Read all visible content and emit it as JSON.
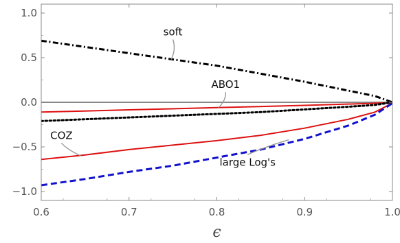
{
  "chart_data": {
    "type": "line",
    "title": "",
    "xlabel": "ϵ",
    "ylabel": "",
    "xlim": [
      0.6,
      1.0
    ],
    "ylim": [
      -1.1,
      1.1
    ],
    "grid": false,
    "xticks": [
      0.6,
      0.7,
      0.8,
      0.9,
      1.0
    ],
    "xtick_labels": [
      "0.6",
      "0.7",
      "0.8",
      "0.9",
      "1.0"
    ],
    "yticks": [
      -1.0,
      -0.5,
      0.0,
      0.5,
      1.0
    ],
    "ytick_labels": [
      "−1.0",
      "−0.5",
      "0.0",
      "0.5",
      "1.0"
    ],
    "series": [
      {
        "color": "#000000",
        "style": "dashdot",
        "x": [
          0.6,
          0.65,
          0.7,
          0.75,
          0.8,
          0.85,
          0.9,
          0.95,
          0.98,
          1.0
        ],
        "y": [
          0.69,
          0.62,
          0.55,
          0.48,
          0.41,
          0.32,
          0.23,
          0.13,
          0.07,
          0.0
        ]
      },
      {
        "color": "#888888",
        "style": "solid",
        "x": [
          0.6,
          1.0
        ],
        "y": [
          0.0,
          0.0
        ]
      },
      {
        "color": "#dd1111",
        "style": "solid",
        "x": [
          0.6,
          0.7,
          0.8,
          0.9,
          1.0
        ],
        "y": [
          -0.11,
          -0.085,
          -0.06,
          -0.035,
          -0.005
        ]
      },
      {
        "color": "#000000",
        "style": "dotted",
        "x": [
          0.6,
          0.65,
          0.7,
          0.75,
          0.8,
          0.85,
          0.9,
          0.95,
          0.98,
          1.0
        ],
        "y": [
          -0.21,
          -0.19,
          -0.17,
          -0.15,
          -0.13,
          -0.11,
          -0.08,
          -0.05,
          -0.03,
          0.0
        ]
      },
      {
        "color": "#dd1111",
        "style": "solid",
        "x": [
          0.6,
          0.65,
          0.7,
          0.75,
          0.8,
          0.85,
          0.9,
          0.95,
          0.98,
          1.0
        ],
        "y": [
          -0.64,
          -0.59,
          -0.53,
          -0.48,
          -0.43,
          -0.37,
          -0.29,
          -0.19,
          -0.11,
          -0.01
        ]
      },
      {
        "color": "#1111cc",
        "style": "dashed",
        "x": [
          0.6,
          0.65,
          0.7,
          0.75,
          0.8,
          0.85,
          0.9,
          0.95,
          0.98,
          1.0
        ],
        "y": [
          -0.93,
          -0.86,
          -0.78,
          -0.71,
          -0.62,
          -0.53,
          -0.41,
          -0.26,
          -0.14,
          -0.01
        ]
      }
    ],
    "annotations": [
      {
        "text": "soft",
        "x": 0.75,
        "y": 0.75,
        "target": [
          0.748,
          0.48
        ]
      },
      {
        "text": "ABO1",
        "x": 0.81,
        "y": 0.16,
        "target": [
          0.802,
          -0.06
        ]
      },
      {
        "text": "COZ",
        "x": 0.623,
        "y": -0.41,
        "target": [
          0.645,
          -0.6
        ]
      },
      {
        "text": "large Log's",
        "x": 0.835,
        "y": -0.71,
        "target": [
          0.882,
          -0.42
        ]
      }
    ]
  }
}
